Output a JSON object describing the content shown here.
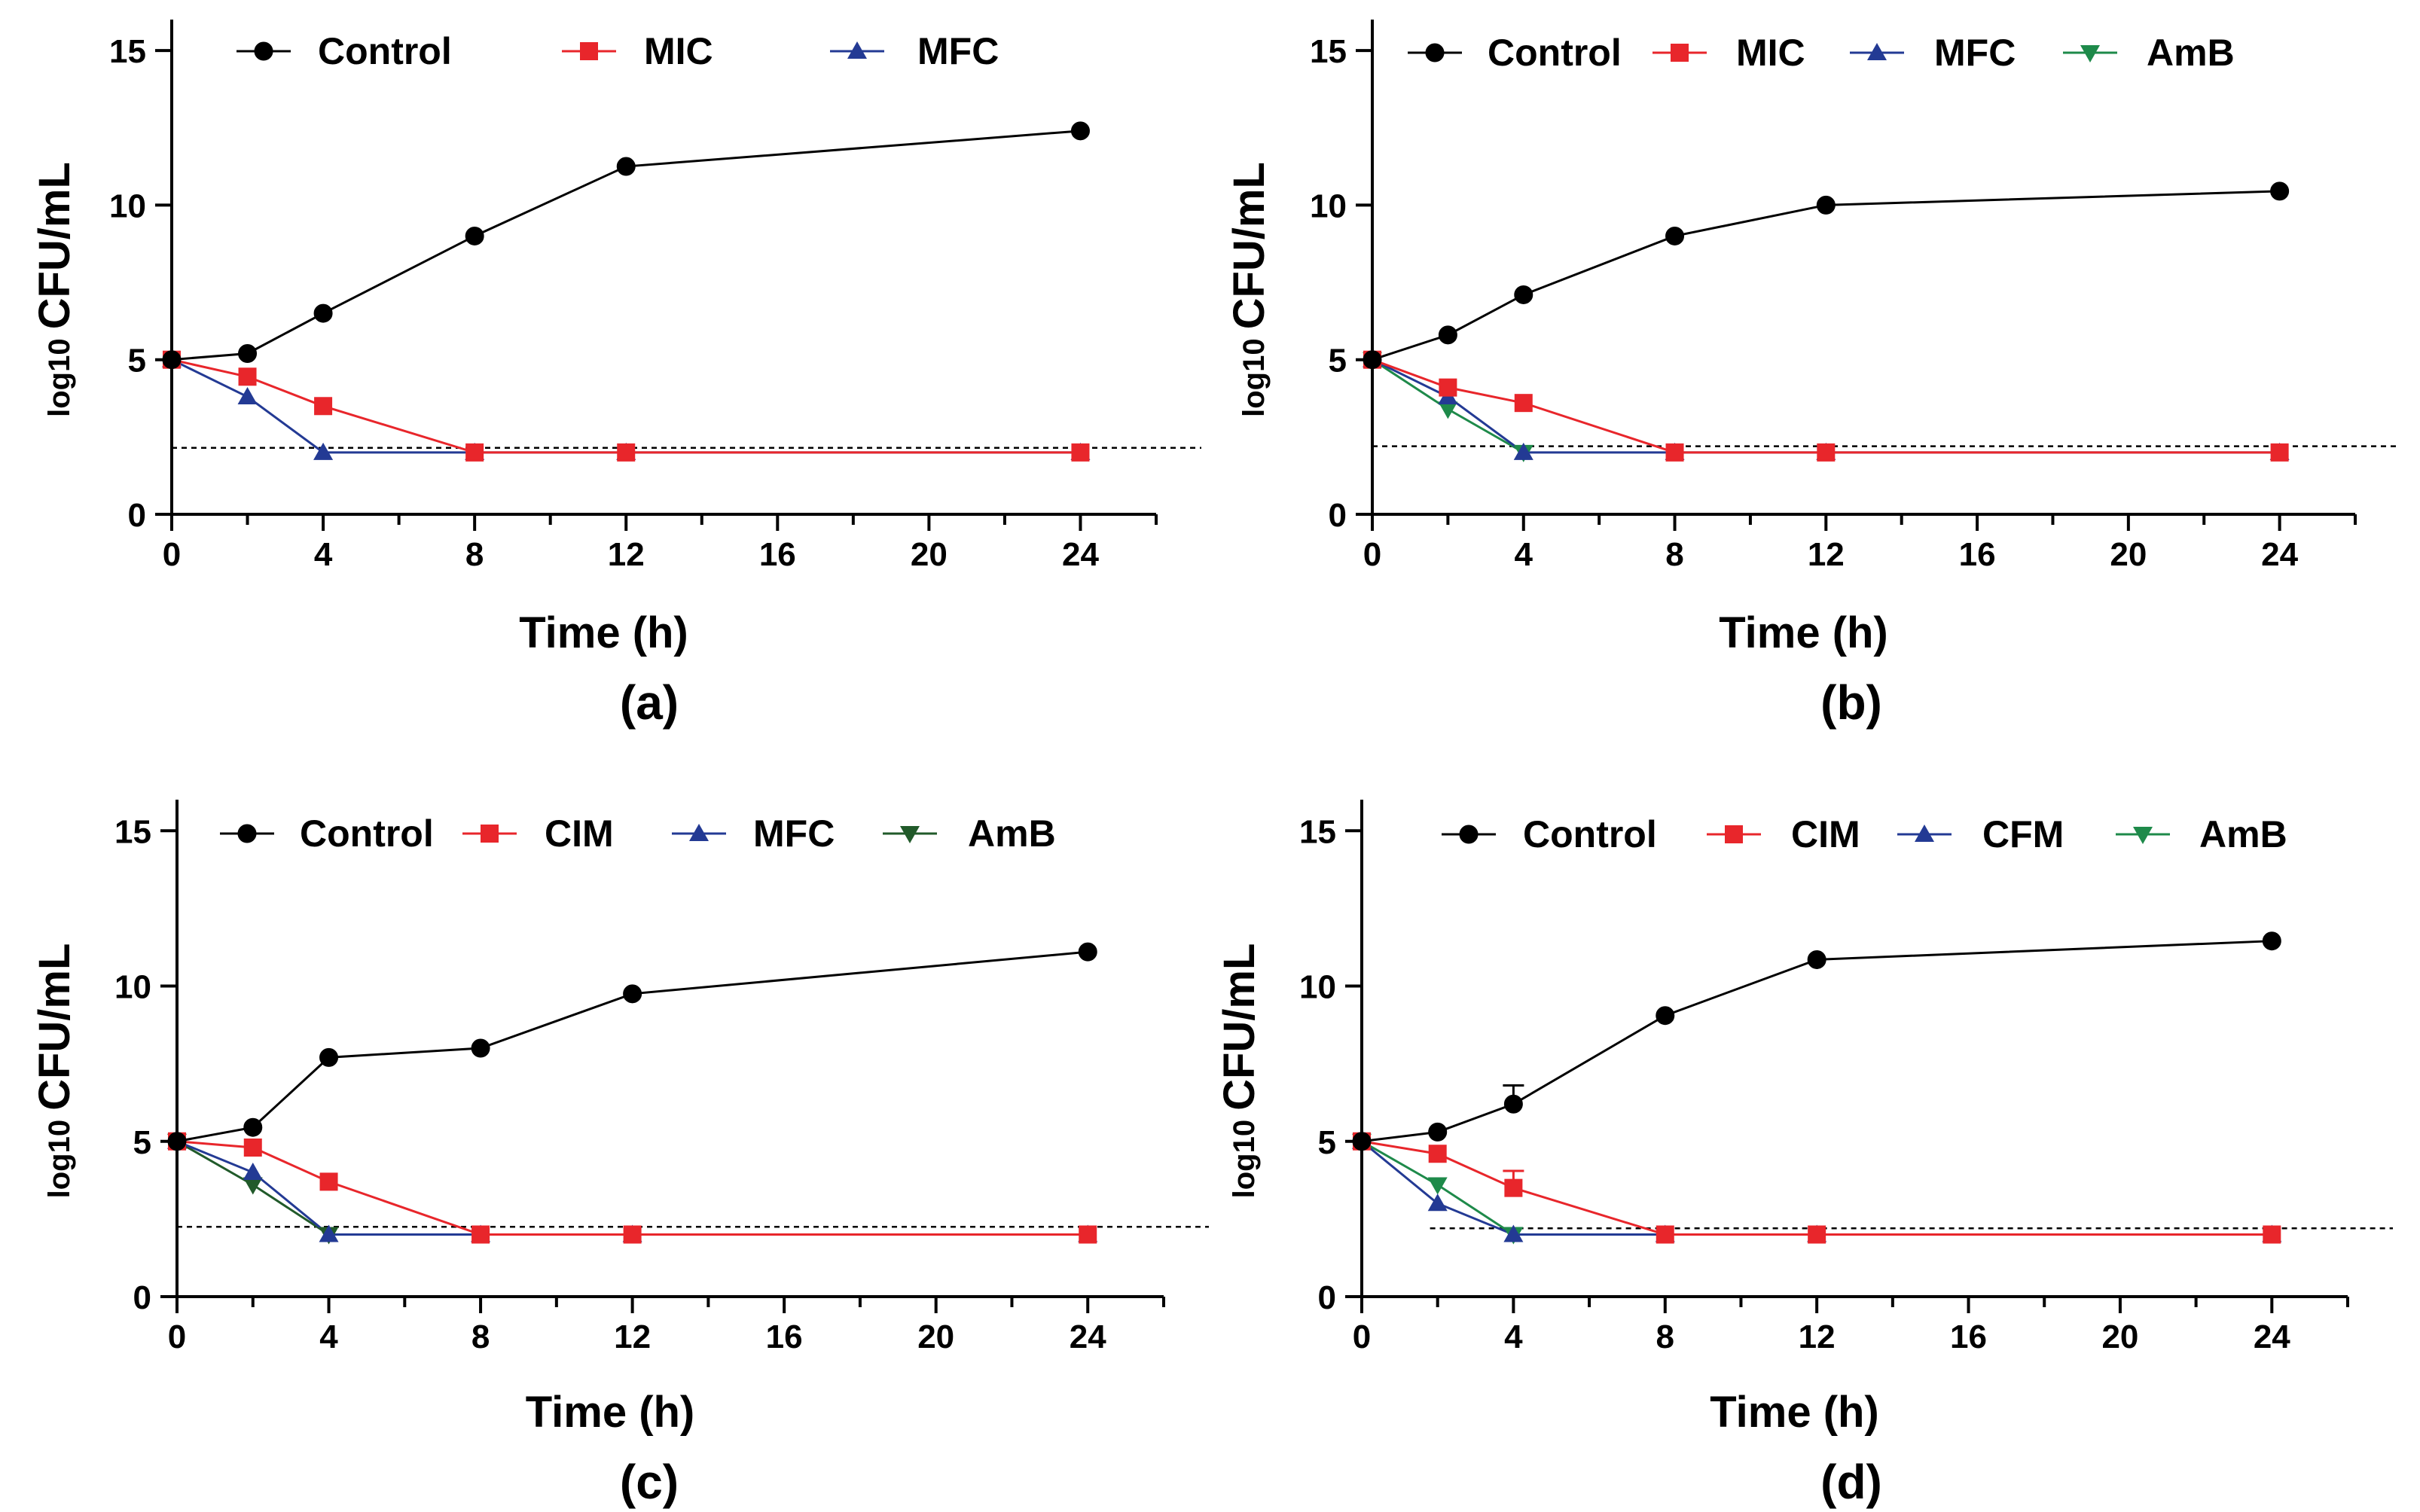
{
  "chart_data": [
    {
      "type": "line",
      "panel_label": "(a)",
      "xlabel": "Time (h)",
      "ylabel_prefix": "log10",
      "ylabel_main": "CFU/mL",
      "xlim": [
        0,
        26
      ],
      "ylim": [
        0,
        16
      ],
      "xticks": [
        0,
        4,
        8,
        12,
        16,
        20,
        24
      ],
      "yticks": [
        0,
        5,
        10,
        15
      ],
      "detection_limit": 2.15,
      "series": [
        {
          "name": "Control",
          "marker": "circle",
          "color": "#000000",
          "x": [
            0,
            2,
            4,
            8,
            12,
            24
          ],
          "y": [
            5.0,
            5.2,
            6.5,
            9.0,
            11.25,
            12.4
          ]
        },
        {
          "name": "MIC",
          "marker": "square",
          "color": "#e8262b",
          "x": [
            0,
            2,
            4,
            8,
            12,
            24
          ],
          "y": [
            5.0,
            4.45,
            3.5,
            2.0,
            2.0,
            2.0
          ]
        },
        {
          "name": "MFC",
          "marker": "triangle-up",
          "color": "#233a94",
          "x": [
            0,
            2,
            4,
            8,
            12,
            24
          ],
          "y": [
            5.0,
            3.8,
            2.0,
            2.0,
            2.0,
            2.0
          ]
        }
      ]
    },
    {
      "type": "line",
      "panel_label": "(b)",
      "xlabel": "Time (h)",
      "ylabel_prefix": "log10",
      "ylabel_main": "CFU/mL",
      "xlim": [
        0,
        26
      ],
      "ylim": [
        0,
        16
      ],
      "xticks": [
        0,
        4,
        8,
        12,
        16,
        20,
        24
      ],
      "yticks": [
        0,
        5,
        10,
        15
      ],
      "detection_limit": 2.2,
      "series": [
        {
          "name": "Control",
          "marker": "circle",
          "color": "#000000",
          "x": [
            0,
            2,
            4,
            8,
            12,
            24
          ],
          "y": [
            5.0,
            5.8,
            7.1,
            9.0,
            10.0,
            10.45
          ]
        },
        {
          "name": "MIC",
          "marker": "square",
          "color": "#e8262b",
          "x": [
            0,
            2,
            4,
            8,
            12,
            24
          ],
          "y": [
            5.0,
            4.1,
            3.6,
            2.0,
            2.0,
            2.0
          ]
        },
        {
          "name": "MFC",
          "marker": "triangle-up",
          "color": "#233a94",
          "x": [
            0,
            2,
            4,
            8,
            12,
            24
          ],
          "y": [
            5.0,
            3.8,
            2.0,
            2.0,
            2.0,
            2.0
          ]
        },
        {
          "name": "AmB",
          "marker": "triangle-down",
          "color": "#1e8a4a",
          "x": [
            0,
            2,
            4
          ],
          "y": [
            5.0,
            3.4,
            2.0
          ]
        }
      ]
    },
    {
      "type": "line",
      "panel_label": "(c)",
      "xlabel": "Time (h)",
      "ylabel_prefix": "log10",
      "ylabel_main": "CFU/mL",
      "xlim": [
        0,
        26
      ],
      "ylim": [
        0,
        16
      ],
      "xticks": [
        0,
        4,
        8,
        12,
        16,
        20,
        24
      ],
      "yticks": [
        0,
        5,
        10,
        15
      ],
      "detection_limit": 2.25,
      "series": [
        {
          "name": "Control",
          "marker": "circle",
          "color": "#000000",
          "x": [
            0,
            2,
            4,
            8,
            12,
            24
          ],
          "y": [
            5.0,
            5.45,
            7.7,
            8.0,
            9.75,
            11.1
          ]
        },
        {
          "name": "CIM",
          "marker": "square",
          "color": "#e8262b",
          "x": [
            0,
            2,
            4,
            8,
            12,
            24
          ],
          "y": [
            5.0,
            4.8,
            3.7,
            2.0,
            2.0,
            2.0
          ]
        },
        {
          "name": "MFC",
          "marker": "triangle-up",
          "color": "#233a94",
          "x": [
            0,
            2,
            4,
            8,
            12,
            24
          ],
          "y": [
            5.0,
            4.0,
            2.0,
            2.0,
            2.0,
            2.0
          ]
        },
        {
          "name": "AmB",
          "marker": "triangle-down",
          "color": "#215a2a",
          "x": [
            0,
            2,
            4
          ],
          "y": [
            5.0,
            3.6,
            2.0
          ]
        }
      ]
    },
    {
      "type": "line",
      "panel_label": "(d)",
      "xlabel": "Time (h)",
      "ylabel_prefix": "log10",
      "ylabel_main": "CFU/mL",
      "xlim": [
        0,
        26
      ],
      "ylim": [
        0,
        16
      ],
      "xticks": [
        0,
        4,
        8,
        12,
        16,
        20,
        24
      ],
      "yticks": [
        0,
        5,
        10,
        15
      ],
      "detection_limit": 2.2,
      "detection_limit_start_x": 1.8,
      "series": [
        {
          "name": "Control",
          "marker": "circle",
          "color": "#000000",
          "x": [
            0,
            2,
            4,
            8,
            12,
            24
          ],
          "y": [
            5.0,
            5.3,
            6.2,
            9.05,
            10.85,
            11.45
          ],
          "error": [
            0,
            0,
            0.6,
            0,
            0,
            0
          ]
        },
        {
          "name": "CIM",
          "marker": "square",
          "color": "#e8262b",
          "x": [
            0,
            2,
            4,
            8,
            12,
            24
          ],
          "y": [
            5.0,
            4.6,
            3.5,
            2.0,
            2.0,
            2.0
          ],
          "error": [
            0,
            0,
            0.55,
            0,
            0,
            0
          ]
        },
        {
          "name": "CFM",
          "marker": "triangle-up",
          "color": "#233a94",
          "x": [
            0,
            2,
            4,
            8,
            12,
            24
          ],
          "y": [
            5.0,
            3.0,
            2.0,
            2.0,
            2.0,
            2.0
          ]
        },
        {
          "name": "AmB",
          "marker": "triangle-down",
          "color": "#1e8a4a",
          "x": [
            0,
            2,
            4
          ],
          "y": [
            5.0,
            3.6,
            2.0
          ]
        }
      ]
    }
  ]
}
